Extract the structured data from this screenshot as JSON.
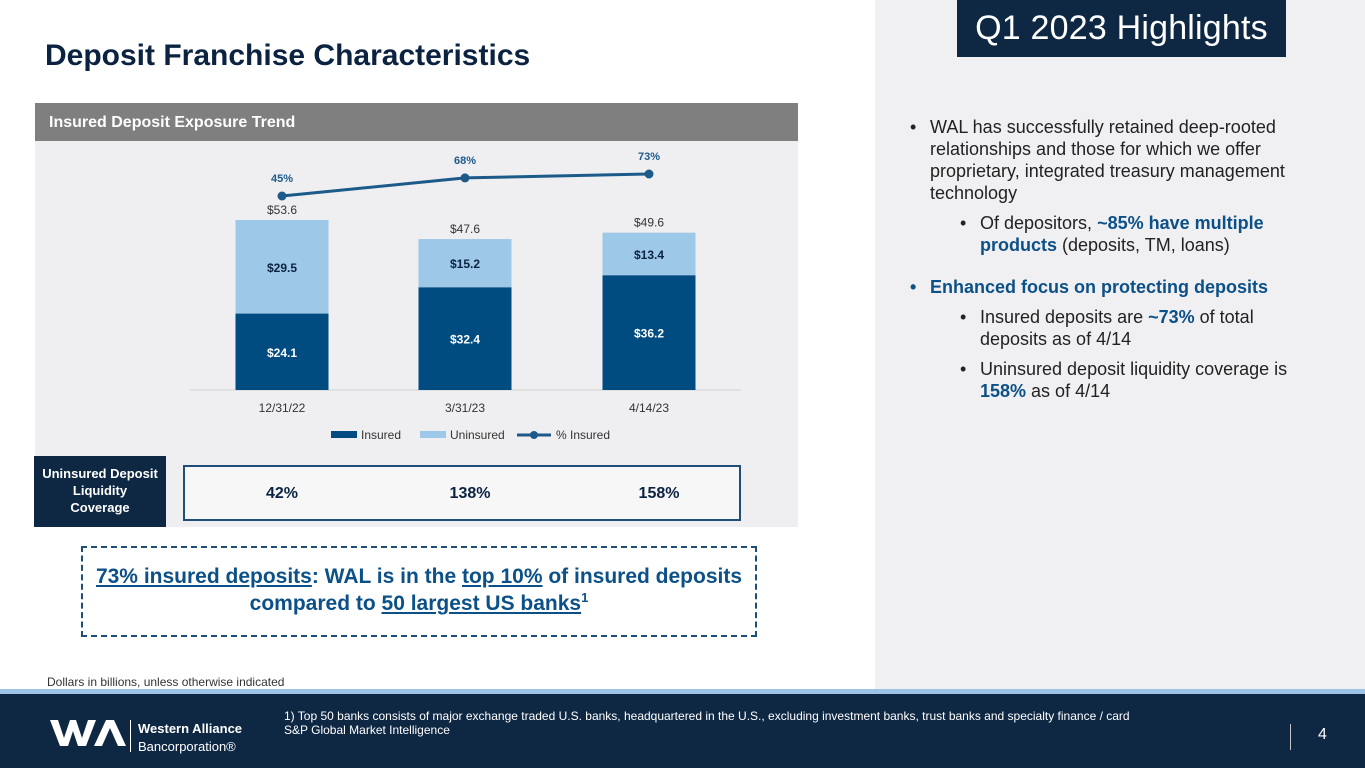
{
  "page_title": "Deposit Franchise Characteristics",
  "highlights_label": "Q1 2023 Highlights",
  "chart_header": "Insured Deposit Exposure Trend",
  "chart_data": {
    "type": "bar",
    "stacked": true,
    "categories": [
      "12/31/22",
      "3/31/23",
      "4/14/23"
    ],
    "series": [
      {
        "name": "Insured",
        "values": [
          24.1,
          32.4,
          36.2
        ],
        "labels": [
          "$24.1",
          "$32.4",
          "$36.2"
        ],
        "color": "#004b80"
      },
      {
        "name": "Uninsured",
        "values": [
          29.5,
          15.2,
          13.4
        ],
        "labels": [
          "$29.5",
          "$15.2",
          "$13.4"
        ],
        "color": "#9dc8e8"
      }
    ],
    "totals": [
      53.6,
      47.6,
      49.6
    ],
    "total_labels": [
      "$53.6",
      "$47.6",
      "$49.6"
    ],
    "line_series": {
      "name": "% Insured",
      "values": [
        45,
        68,
        73
      ],
      "labels": [
        "45%",
        "68%",
        "73%"
      ],
      "color": "#1c5a8a"
    },
    "legend": [
      "Insured",
      "Uninsured",
      "% Insured"
    ],
    "legend_position": "bottom",
    "ylim": [
      0,
      60
    ]
  },
  "coverage": {
    "label": "Uninsured Deposit Liquidity Coverage",
    "values": [
      "42%",
      "138%",
      "158%"
    ]
  },
  "callout": {
    "part1": "73% insured deposits",
    "part2": ": WAL is in the ",
    "part3": "top 10%",
    "part4": " of insured deposits compared to ",
    "part5": "50 largest US banks",
    "sup": "1"
  },
  "units_note": "Dollars in billions, unless otherwise indicated",
  "bullets": {
    "b1": "WAL has successfully retained deep-rooted relationships and those for which we offer proprietary, integrated treasury management technology",
    "b1_sub_pre": "Of depositors, ",
    "b1_sub_hl": "~85% have multiple products",
    "b1_sub_post": " (deposits, TM, loans)",
    "b2": "Enhanced focus on protecting deposits",
    "b2_sub1_pre": "Insured deposits are ",
    "b2_sub1_hl": "~73%",
    "b2_sub1_post": " of total deposits as of 4/14",
    "b2_sub2_pre": "Uninsured deposit liquidity coverage is ",
    "b2_sub2_hl": "158%",
    "b2_sub2_post": " as of 4/14"
  },
  "footer": {
    "note_line1": "1)  Top 50 banks consists of major exchange traded U.S. banks, headquartered in the U.S., excluding investment banks, trust banks and specialty finance / card",
    "note_line2": "S&P Global Market Intelligence",
    "brand_line1": "Western Alliance",
    "brand_line2": "Bancorporation®",
    "page_number": "4"
  },
  "colors": {
    "navy": "#0e2743",
    "accent_blue": "#0c5088",
    "insured": "#004b80",
    "uninsured": "#9dc8e8"
  }
}
